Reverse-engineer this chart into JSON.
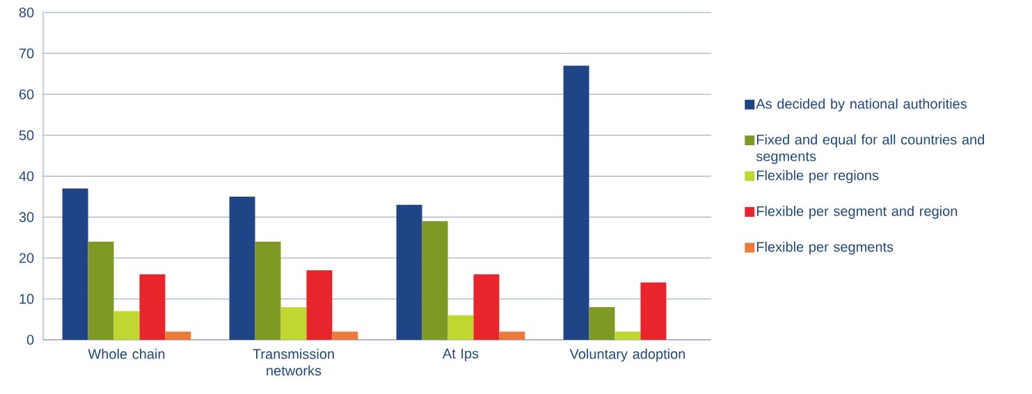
{
  "chart_data": {
    "type": "bar",
    "categories": [
      "Whole chain",
      "Transmission networks",
      "At Ips",
      "Voluntary adoption"
    ],
    "series": [
      {
        "name": "As decided by national authorities",
        "color": "#1f4586",
        "values": [
          37,
          35,
          33,
          67
        ]
      },
      {
        "name": "Fixed and equal for all countries and segments",
        "color": "#7f9a24",
        "values": [
          24,
          24,
          29,
          8
        ]
      },
      {
        "name": "Flexible per regions",
        "color": "#c0d631",
        "values": [
          7,
          8,
          6,
          2
        ]
      },
      {
        "name": "Flexible per segment and region",
        "color": "#e8252b",
        "values": [
          16,
          17,
          16,
          14
        ]
      },
      {
        "name": "Flexible per segments",
        "color": "#ec7a3b",
        "values": [
          2,
          2,
          2,
          null
        ]
      }
    ],
    "ylim": [
      0,
      80
    ],
    "yticks": [
      0,
      10,
      20,
      30,
      40,
      50,
      60,
      70,
      80
    ],
    "grid": "y",
    "legend": "right"
  }
}
